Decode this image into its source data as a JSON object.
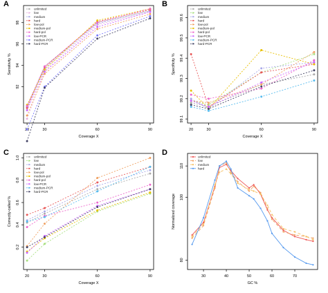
{
  "chart_data": [
    {
      "panel": "A",
      "type": "line",
      "xlabel": "Coverage X",
      "ylabel": "Sensitivity %",
      "x": [
        20,
        30,
        60,
        90
      ],
      "x_ticks": [
        "20",
        "30",
        "60",
        "90"
      ],
      "y_ticks": [
        "92",
        "94",
        "96",
        "98"
      ],
      "y_tick_values": [
        92,
        94,
        96,
        98
      ],
      "xlim": [
        18,
        92
      ],
      "ylim": [
        88.6,
        99.6
      ],
      "legend_position": "top-left",
      "series": [
        {
          "name": "unlimited",
          "color": "#aaaaaa",
          "dash": "2,2",
          "values": [
            90.1,
            93.9,
            98.0,
            99.1
          ]
        },
        {
          "name": "low",
          "color": "#e8b3e0",
          "dash": "2,2",
          "values": [
            89.0,
            93.5,
            97.8,
            99.0
          ]
        },
        {
          "name": "medium",
          "color": "#a8a8e8",
          "dash": "2,2",
          "values": [
            90.1,
            93.7,
            97.9,
            99.1
          ]
        },
        {
          "name": "hard",
          "color": "#e85a5a",
          "dash": "2,2",
          "values": [
            90.0,
            93.8,
            98.1,
            99.2
          ]
        },
        {
          "name": "low-pol",
          "color": "#f0a060",
          "dash": "2,2",
          "values": [
            89.3,
            93.2,
            97.4,
            98.8
          ]
        },
        {
          "name": "medium-pol",
          "color": "#e8c000",
          "dash": "2,2",
          "values": [
            90.3,
            93.6,
            98.2,
            99.3
          ]
        },
        {
          "name": "hard-pol",
          "color": "#ee66cc",
          "dash": "2,2",
          "values": [
            90.2,
            93.9,
            98.0,
            99.3
          ]
        },
        {
          "name": "low-PCR",
          "color": "#cc66ff",
          "dash": "2,2",
          "values": [
            89.8,
            93.4,
            97.6,
            99.0
          ]
        },
        {
          "name": "medium-PCR",
          "color": "#7777ff",
          "dash": "2,2",
          "values": [
            88.0,
            92.0,
            96.8,
            98.6
          ]
        },
        {
          "name": "hard-PCR",
          "color": "#444466",
          "dash": "2,2",
          "values": [
            86.9,
            91.9,
            96.5,
            98.4
          ]
        }
      ]
    },
    {
      "panel": "B",
      "type": "line",
      "xlabel": "Coverage X",
      "ylabel": "Specificity %",
      "x": [
        20,
        30,
        60,
        90
      ],
      "x_ticks": [
        "20",
        "30",
        "60",
        "90"
      ],
      "y_ticks": [
        "99.1",
        "99.2",
        "99.3",
        "99.4",
        "99.5",
        "99.6"
      ],
      "y_tick_values": [
        99.1,
        99.2,
        99.3,
        99.4,
        99.5,
        99.6
      ],
      "xlim": [
        18,
        92
      ],
      "ylim": [
        99.08,
        99.66
      ],
      "legend_position": "top-left",
      "series": [
        {
          "name": "unlimited",
          "color": "#aaaaaa",
          "dash": "2,2",
          "values": [
            99.18,
            99.16,
            99.27,
            99.32
          ]
        },
        {
          "name": "low",
          "color": "#a8e080",
          "dash": "2,2",
          "values": [
            99.19,
            99.17,
            99.33,
            99.42
          ]
        },
        {
          "name": "medium",
          "color": "#a8a8e8",
          "dash": "2,2",
          "values": [
            99.2,
            99.15,
            99.35,
            99.38
          ]
        },
        {
          "name": "hard",
          "color": "#e85a5a",
          "dash": "2,2",
          "values": [
            99.42,
            99.16,
            99.33,
            99.37
          ]
        },
        {
          "name": "low-pol",
          "color": "#f0a060",
          "dash": "2,2",
          "values": [
            99.19,
            99.18,
            99.27,
            99.43
          ]
        },
        {
          "name": "medium-pol",
          "color": "#e8c000",
          "dash": "2,2",
          "values": [
            99.24,
            99.15,
            99.44,
            99.37
          ]
        },
        {
          "name": "hard-pol",
          "color": "#ee66cc",
          "dash": "2,2",
          "values": [
            99.22,
            99.2,
            99.25,
            99.39
          ]
        },
        {
          "name": "low-PCR",
          "color": "#cc66ff",
          "dash": "2,2",
          "values": [
            99.19,
            99.16,
            99.28,
            99.38
          ]
        },
        {
          "name": "medium-PCR",
          "color": "#55bbee",
          "dash": "2,2",
          "values": [
            99.16,
            99.14,
            99.21,
            99.29
          ]
        },
        {
          "name": "hard-PCR",
          "color": "#444466",
          "dash": "2,2",
          "values": [
            99.17,
            99.15,
            99.26,
            99.34
          ]
        }
      ]
    },
    {
      "panel": "C",
      "type": "line",
      "xlabel": "Coverage X",
      "ylabel": "Correctly-called %",
      "x": [
        20,
        30,
        60,
        90
      ],
      "x_ticks": [
        "20",
        "30",
        "60",
        "90"
      ],
      "y_ticks": [
        "0.2",
        "0.4",
        "0.6",
        "0.8",
        "1.0"
      ],
      "y_tick_values": [
        0.2,
        0.4,
        0.6,
        0.8,
        1.0
      ],
      "xlim": [
        18,
        92
      ],
      "ylim": [
        0.0,
        1.04
      ],
      "legend_position": "top-left",
      "series": [
        {
          "name": "unlimited",
          "color": "#aaaaaa",
          "dash": "2,2",
          "values": [
            0.42,
            0.5,
            0.72,
            0.86
          ]
        },
        {
          "name": "low",
          "color": "#a8e080",
          "dash": "2,2",
          "values": [
            0.08,
            0.23,
            0.52,
            0.68
          ]
        },
        {
          "name": "medium",
          "color": "#a8a8e8",
          "dash": "2,2",
          "values": [
            0.44,
            0.52,
            0.75,
            0.89
          ]
        },
        {
          "name": "hard",
          "color": "#e85a5a",
          "dash": "2,2",
          "values": [
            0.49,
            0.55,
            0.78,
            0.92
          ]
        },
        {
          "name": "low-pol",
          "color": "#f0a060",
          "dash": "2,2",
          "values": [
            0.21,
            0.41,
            0.82,
            1.0
          ]
        },
        {
          "name": "medium-pol",
          "color": "#e8c000",
          "dash": "2,2",
          "values": [
            0.16,
            0.28,
            0.53,
            0.69
          ]
        },
        {
          "name": "hard-pol",
          "color": "#ee66cc",
          "dash": "2,2",
          "values": [
            0.38,
            0.48,
            0.6,
            0.76
          ]
        },
        {
          "name": "low-PCR",
          "color": "#cc66ff",
          "dash": "2,2",
          "values": [
            0.15,
            0.3,
            0.57,
            0.72
          ]
        },
        {
          "name": "medium-PCR",
          "color": "#55bbee",
          "dash": "2,2",
          "values": [
            0.43,
            0.47,
            0.7,
            0.92
          ]
        },
        {
          "name": "hard-PCR",
          "color": "#444466",
          "dash": "2,2",
          "values": [
            0.2,
            0.29,
            0.56,
            0.72
          ]
        }
      ]
    },
    {
      "panel": "D",
      "type": "line",
      "xlabel": "GC %",
      "ylabel": "Normalized coverage",
      "x": [
        25,
        30,
        35,
        37,
        40,
        42,
        45,
        50,
        52,
        55,
        58,
        60,
        65,
        70,
        75,
        78
      ],
      "x_ticks": [
        "30",
        "40",
        "50",
        "60",
        "70"
      ],
      "x_tick_values": [
        30,
        40,
        50,
        60,
        70
      ],
      "y_ticks": [
        "80",
        "100",
        "110"
      ],
      "y_tick_values": [
        80,
        100,
        110
      ],
      "xlim": [
        23,
        80
      ],
      "ylim": [
        77,
        114
      ],
      "legend_position": "top-left",
      "series": [
        {
          "name": "unlimited",
          "color": "#ee5555",
          "dash": "",
          "values": [
            88.0,
            92.0,
            103.5,
            109.5,
            110.5,
            108.5,
            106.0,
            103.0,
            104.0,
            101.0,
            96.0,
            93.5,
            89.5,
            87.5,
            86.5,
            86.0
          ]
        },
        {
          "name": "low",
          "color": "#f0a060",
          "dash": "4,3",
          "values": [
            87.0,
            91.0,
            103.0,
            110.0,
            111.0,
            108.0,
            105.0,
            102.0,
            103.5,
            101.5,
            96.5,
            93.0,
            89.0,
            88.0,
            87.5,
            87.0
          ]
        },
        {
          "name": "medium",
          "color": "#f5c060",
          "dash": "4,3",
          "values": [
            87.5,
            91.5,
            104.0,
            108.0,
            109.0,
            107.5,
            104.5,
            102.5,
            102.0,
            101.0,
            97.5,
            94.5,
            90.0,
            89.0,
            87.5,
            86.5
          ]
        },
        {
          "name": "hard",
          "color": "#5599ee",
          "dash": "",
          "values": [
            85.0,
            93.5,
            105.5,
            110.0,
            111.5,
            109.0,
            103.0,
            100.5,
            99.5,
            96.5,
            92.5,
            88.5,
            84.0,
            81.0,
            79.0,
            78.5
          ]
        }
      ]
    }
  ]
}
